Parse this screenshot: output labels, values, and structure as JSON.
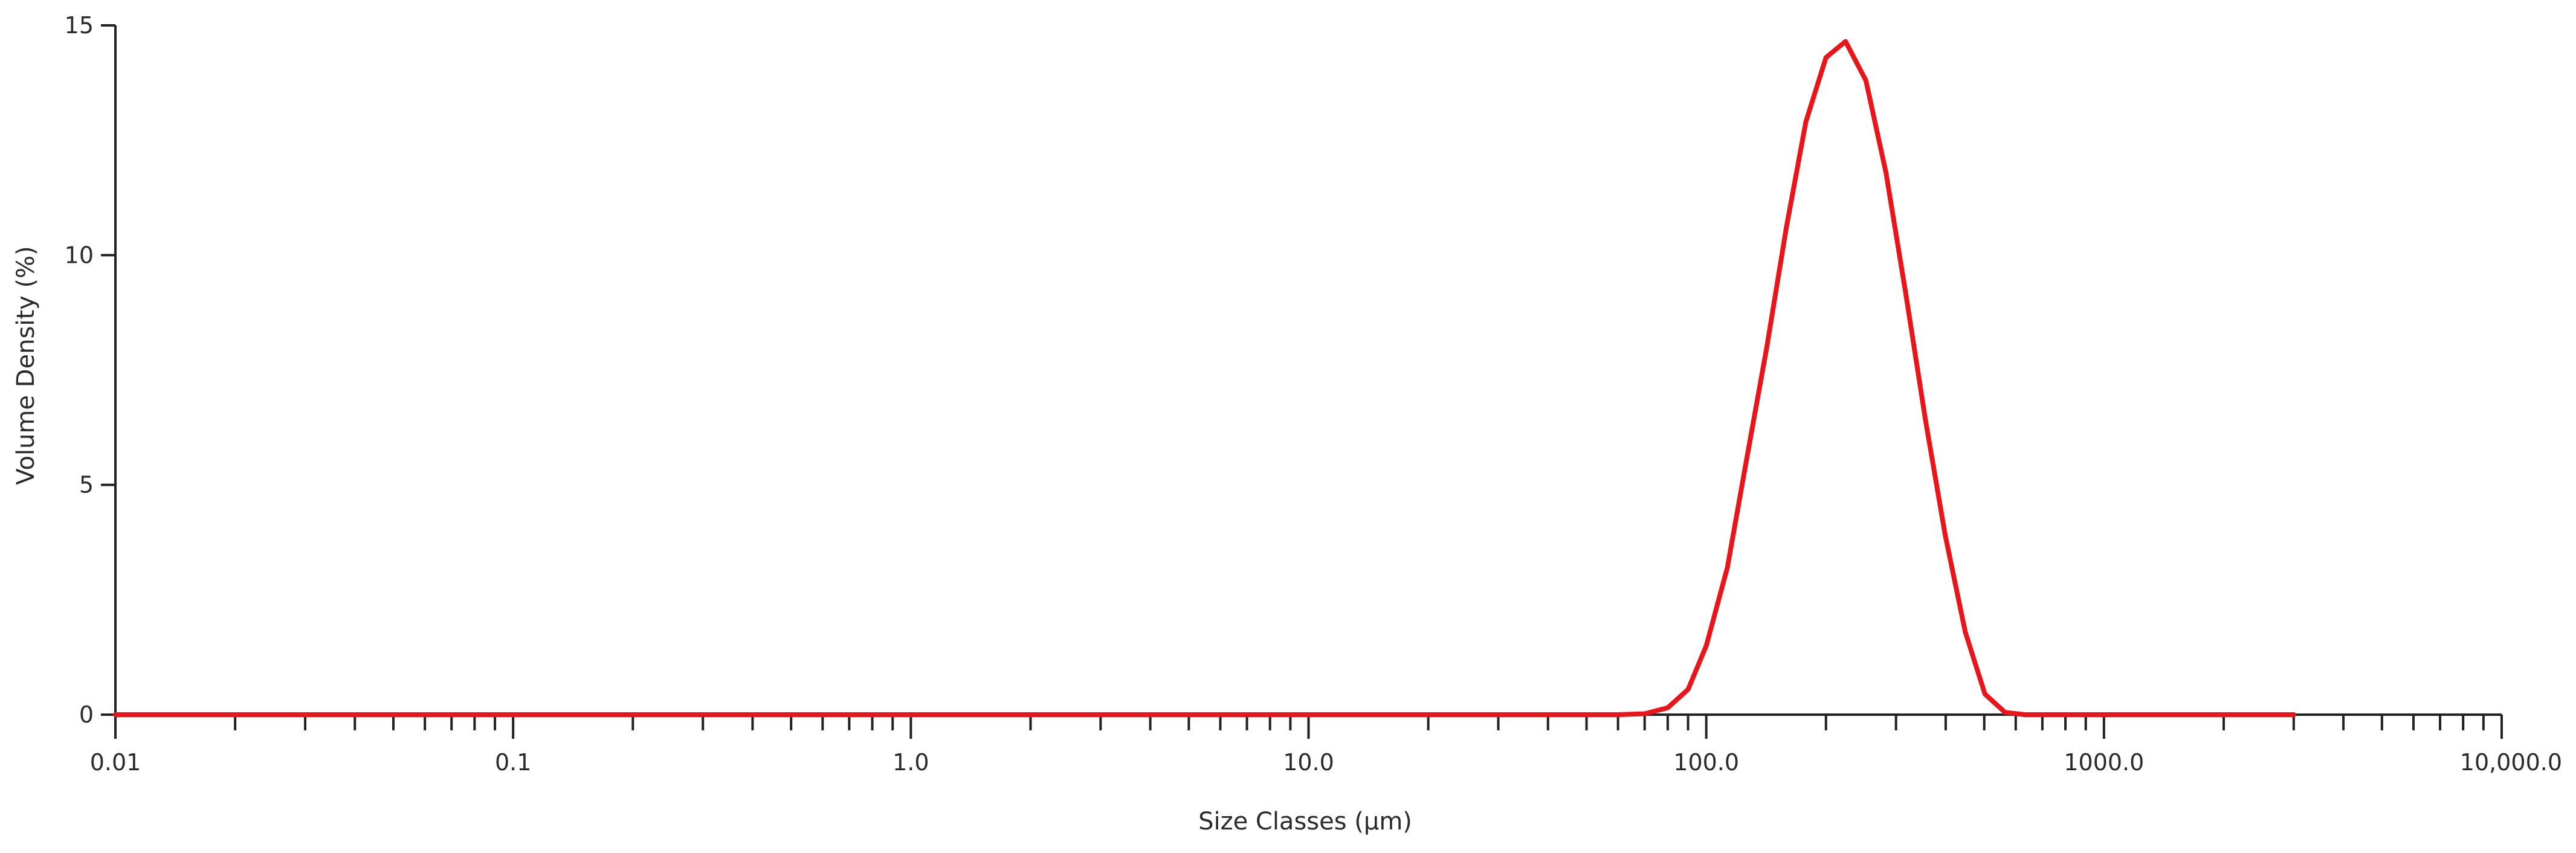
{
  "chart_data": {
    "type": "line",
    "xlabel": "Size Classes (µm)",
    "ylabel": "Volume Density (%)",
    "x_scale": "log",
    "xlim": [
      0.01,
      10000
    ],
    "ylim": [
      0,
      15
    ],
    "x_ticks": [
      {
        "value": 0.01,
        "label": "0.01"
      },
      {
        "value": 0.1,
        "label": "0.1"
      },
      {
        "value": 1,
        "label": "1.0"
      },
      {
        "value": 10,
        "label": "10.0"
      },
      {
        "value": 100,
        "label": "100.0"
      },
      {
        "value": 1000,
        "label": "1000.0"
      },
      {
        "value": 10000,
        "label": "10,000.0"
      }
    ],
    "y_ticks": [
      {
        "value": 0,
        "label": "0"
      },
      {
        "value": 5,
        "label": "5"
      },
      {
        "value": 10,
        "label": "10"
      },
      {
        "value": 15,
        "label": "15"
      }
    ],
    "grid": false,
    "series": [
      {
        "color": "#e8161b",
        "points": [
          [
            0.01,
            0
          ],
          [
            0.1,
            0
          ],
          [
            1,
            0
          ],
          [
            10,
            0
          ],
          [
            60,
            0
          ],
          [
            70,
            0.02
          ],
          [
            80,
            0.15
          ],
          [
            90,
            0.55
          ],
          [
            100,
            1.5
          ],
          [
            113,
            3.2
          ],
          [
            126,
            5.5
          ],
          [
            142,
            8.0
          ],
          [
            159,
            10.6
          ],
          [
            178,
            12.9
          ],
          [
            200,
            14.3
          ],
          [
            224,
            14.65
          ],
          [
            252,
            13.8
          ],
          [
            283,
            11.8
          ],
          [
            317,
            9.2
          ],
          [
            356,
            6.4
          ],
          [
            399,
            3.9
          ],
          [
            448,
            1.8
          ],
          [
            502,
            0.45
          ],
          [
            564,
            0.05
          ],
          [
            632,
            0
          ],
          [
            1000,
            0
          ],
          [
            3000,
            0
          ]
        ]
      }
    ]
  }
}
